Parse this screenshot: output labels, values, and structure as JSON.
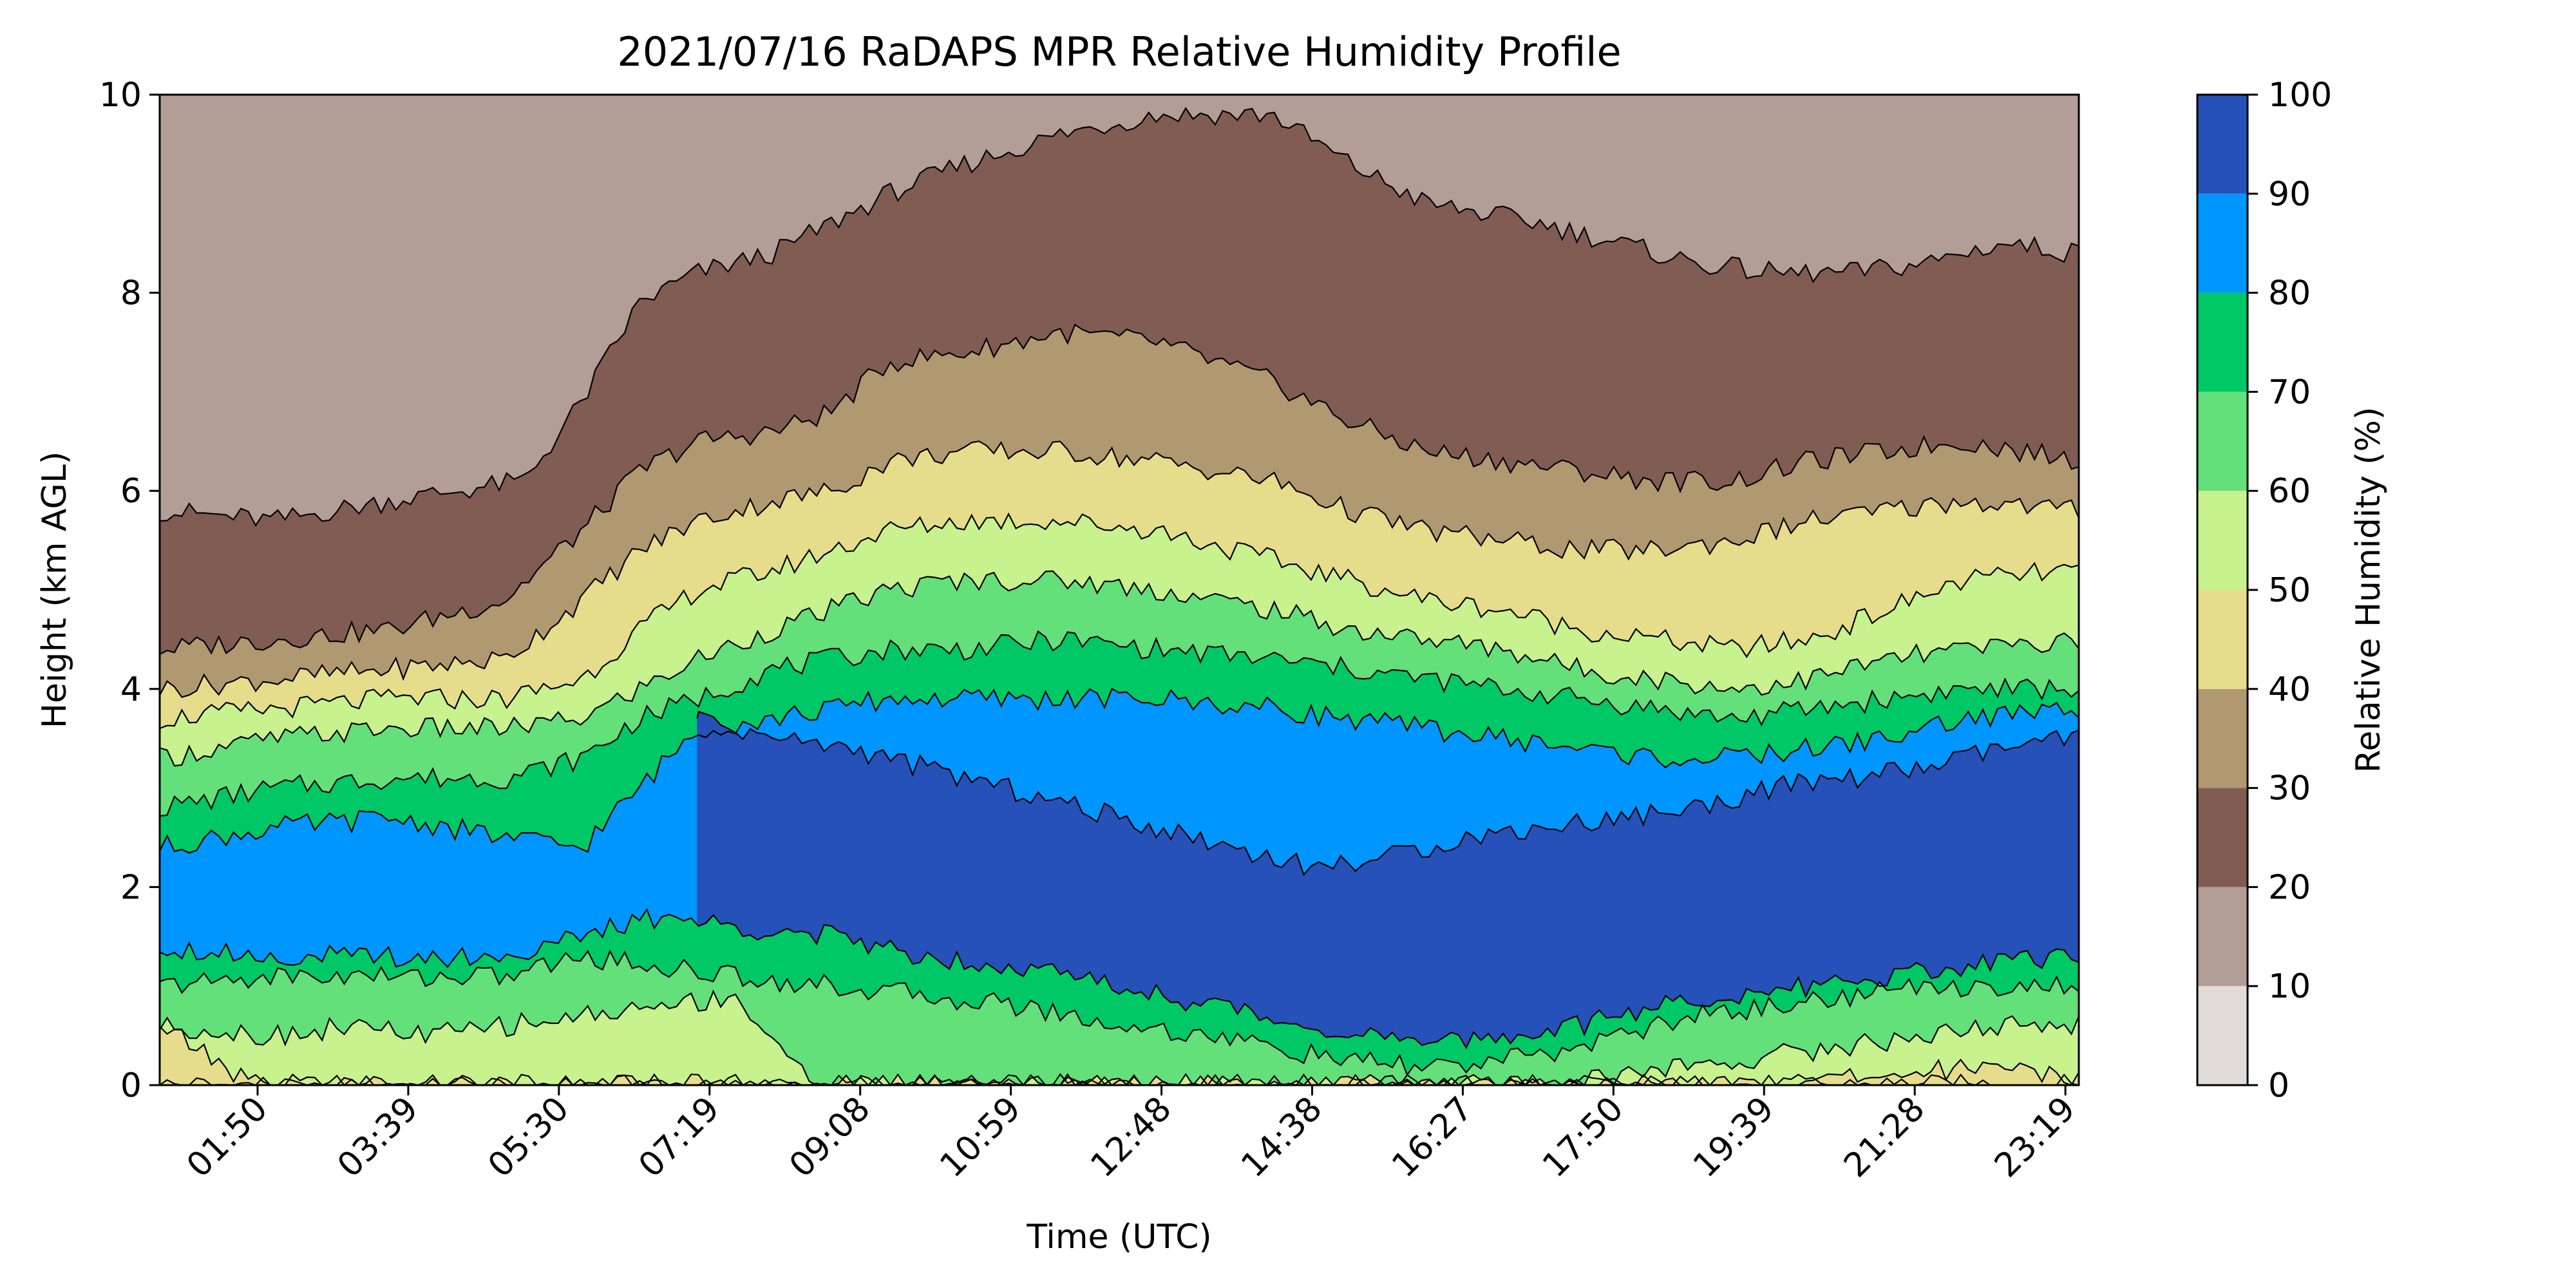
{
  "chart_data": {
    "type": "heatmap",
    "subtype": "filled-contour",
    "title": "2021/07/16 RaDAPS MPR Relative Humidity Profile",
    "xlabel": "Time (UTC)",
    "ylabel": "Height (km AGL)",
    "x_tick_labels": [
      "01:50",
      "03:39",
      "05:30",
      "07:19",
      "09:08",
      "10:59",
      "12:48",
      "14:38",
      "16:27",
      "17:50",
      "19:39",
      "21:28",
      "23:19"
    ],
    "x_tick_rotation_deg": 45,
    "ylim": [
      0,
      10
    ],
    "y_ticks": [
      0,
      2,
      4,
      6,
      8,
      10
    ],
    "colorbar": {
      "label": "Relative Humidity (%)",
      "ticks": [
        0,
        10,
        20,
        30,
        40,
        50,
        60,
        70,
        80,
        90,
        100
      ],
      "levels": [
        0,
        10,
        20,
        30,
        40,
        50,
        60,
        70,
        80,
        90,
        100
      ],
      "colors": [
        "#e2dcd8",
        "#b39d97",
        "#805c53",
        "#b09870",
        "#e5dd8b",
        "#c8f28e",
        "#64e07a",
        "#00c866",
        "#0096ff",
        "#2551b8"
      ]
    },
    "grid": false,
    "contour_boundaries_km": [
      {
        "level": 10,
        "x": [
          0,
          0.5,
          1
        ],
        "y": [
          0,
          0,
          0
        ]
      },
      {
        "level": 20,
        "x": [
          0.0,
          0.06,
          0.12,
          0.19,
          0.22,
          0.25,
          0.28,
          0.32,
          0.35,
          0.38,
          0.42,
          0.47,
          0.52,
          0.58,
          0.62,
          0.66,
          0.72,
          0.76,
          0.8,
          0.84,
          0.88,
          0.92,
          0.96,
          1.0
        ],
        "y": [
          5.8,
          5.7,
          5.9,
          6.1,
          6.9,
          7.9,
          8.2,
          8.4,
          8.7,
          9.0,
          9.3,
          9.6,
          9.8,
          9.8,
          9.3,
          8.9,
          8.7,
          8.5,
          8.3,
          8.2,
          8.2,
          8.3,
          8.5,
          8.4
        ]
      },
      {
        "level": 30,
        "x": [
          0.0,
          0.06,
          0.12,
          0.18,
          0.22,
          0.25,
          0.28,
          0.32,
          0.35,
          0.38,
          0.42,
          0.47,
          0.52,
          0.58,
          0.62,
          0.66,
          0.7,
          0.74,
          0.78,
          0.82,
          0.86,
          0.9,
          0.94,
          1.0
        ],
        "y": [
          4.4,
          4.5,
          4.6,
          4.9,
          5.6,
          6.2,
          6.5,
          6.6,
          6.8,
          7.3,
          7.4,
          7.6,
          7.5,
          7.1,
          6.7,
          6.4,
          6.3,
          6.2,
          6.1,
          6.1,
          6.3,
          6.4,
          6.5,
          6.3
        ]
      },
      {
        "level": 40,
        "x": [
          0.0,
          0.06,
          0.12,
          0.18,
          0.22,
          0.25,
          0.28,
          0.32,
          0.35,
          0.38,
          0.42,
          0.47,
          0.52,
          0.58,
          0.62,
          0.66,
          0.7,
          0.74,
          0.78,
          0.82,
          0.86,
          0.9,
          0.94,
          1.0
        ],
        "y": [
          4.0,
          4.1,
          4.2,
          4.3,
          4.9,
          5.4,
          5.7,
          5.9,
          6.0,
          6.3,
          6.4,
          6.4,
          6.3,
          6.1,
          5.8,
          5.6,
          5.5,
          5.4,
          5.4,
          5.5,
          5.7,
          5.8,
          5.9,
          5.8
        ]
      },
      {
        "level": 50,
        "x": [
          0.0,
          0.06,
          0.12,
          0.18,
          0.22,
          0.25,
          0.28,
          0.32,
          0.35,
          0.38,
          0.42,
          0.47,
          0.52,
          0.58,
          0.62,
          0.66,
          0.7,
          0.74,
          0.78,
          0.82,
          0.86,
          0.9,
          0.94,
          1.0
        ],
        "y": [
          3.7,
          3.8,
          3.9,
          3.9,
          4.1,
          4.6,
          5.0,
          5.2,
          5.4,
          5.6,
          5.7,
          5.7,
          5.6,
          5.3,
          5.1,
          4.9,
          4.8,
          4.6,
          4.5,
          4.4,
          4.5,
          4.8,
          5.1,
          5.2
        ]
      },
      {
        "level": 60,
        "x": [
          0.0,
          0.06,
          0.12,
          0.18,
          0.22,
          0.25,
          0.28,
          0.32,
          0.35,
          0.38,
          0.42,
          0.47,
          0.52,
          0.58,
          0.62,
          0.66,
          0.7,
          0.74,
          0.78,
          0.82,
          0.86,
          0.9,
          0.94,
          1.0
        ],
        "y": [
          3.3,
          3.5,
          3.6,
          3.6,
          3.7,
          4.0,
          4.3,
          4.6,
          4.8,
          5.0,
          5.1,
          5.1,
          5.0,
          4.8,
          4.6,
          4.5,
          4.4,
          4.2,
          4.1,
          4.0,
          4.1,
          4.3,
          4.4,
          4.5
        ]
      },
      {
        "level": 70,
        "x": [
          0.0,
          0.06,
          0.12,
          0.18,
          0.22,
          0.25,
          0.28,
          0.32,
          0.35,
          0.38,
          0.42,
          0.47,
          0.52,
          0.58,
          0.62,
          0.66,
          0.7,
          0.74,
          0.78,
          0.82,
          0.86,
          0.9,
          0.94,
          1.0
        ],
        "y": [
          2.8,
          3.0,
          3.1,
          3.1,
          3.3,
          3.7,
          3.9,
          4.2,
          4.3,
          4.4,
          4.4,
          4.5,
          4.4,
          4.3,
          4.2,
          4.1,
          4.0,
          3.9,
          3.8,
          3.7,
          3.8,
          3.9,
          4.0,
          4.0
        ]
      },
      {
        "level": 80,
        "x": [
          0.0,
          0.06,
          0.12,
          0.18,
          0.22,
          0.25,
          0.28,
          0.32,
          0.35,
          0.38,
          0.42,
          0.47,
          0.52,
          0.58,
          0.62,
          0.66,
          0.7,
          0.74,
          0.78,
          0.82,
          0.86,
          0.9,
          0.94,
          1.0
        ],
        "y": [
          2.4,
          2.6,
          2.7,
          2.5,
          2.4,
          3.0,
          3.6,
          3.7,
          3.8,
          3.9,
          3.9,
          3.9,
          3.9,
          3.8,
          3.7,
          3.6,
          3.5,
          3.4,
          3.3,
          3.3,
          3.4,
          3.5,
          3.7,
          3.8
        ]
      },
      {
        "level": 90,
        "x": [
          0.28,
          0.3,
          0.32,
          0.36,
          0.4,
          0.44,
          0.48,
          0.52,
          0.56,
          0.6,
          0.64,
          0.68,
          0.72,
          0.76,
          0.8,
          0.84,
          0.88,
          0.92,
          0.96,
          1.0
        ],
        "y": [
          3.7,
          3.6,
          3.5,
          3.4,
          3.2,
          3.0,
          2.8,
          2.6,
          2.4,
          2.2,
          2.3,
          2.5,
          2.6,
          2.7,
          2.8,
          3.0,
          3.1,
          3.2,
          3.4,
          3.5
        ]
      },
      {
        "level": 80,
        "x": [
          0.0,
          0.06,
          0.12,
          0.18,
          0.22,
          0.26,
          0.3,
          0.35,
          0.4,
          0.45,
          0.5,
          0.55,
          0.6,
          0.63,
          0.66,
          0.7,
          0.74,
          0.78,
          0.82,
          0.86,
          0.9,
          0.94,
          1.0
        ],
        "y": [
          1.4,
          1.3,
          1.3,
          1.3,
          1.5,
          1.7,
          1.6,
          1.5,
          1.3,
          1.2,
          1.0,
          0.8,
          0.6,
          0.5,
          0.4,
          0.5,
          0.6,
          0.8,
          0.9,
          1.0,
          1.1,
          1.2,
          1.3
        ]
      },
      {
        "level": 70,
        "x": [
          0.0,
          0.06,
          0.12,
          0.18,
          0.22,
          0.26,
          0.3,
          0.35,
          0.4,
          0.45,
          0.5,
          0.55,
          0.6,
          0.64,
          0.68,
          0.72,
          0.76,
          0.8,
          0.84,
          0.88,
          0.92,
          0.96,
          1.0
        ],
        "y": [
          1.0,
          1.1,
          1.1,
          1.1,
          1.3,
          1.2,
          1.1,
          1.0,
          0.9,
          0.8,
          0.6,
          0.5,
          0.3,
          0.2,
          0.2,
          0.3,
          0.5,
          0.7,
          0.8,
          0.9,
          1.0,
          1.0,
          1.0
        ]
      },
      {
        "level": 60,
        "x": [
          0.0,
          0.06,
          0.1,
          0.14,
          0.18,
          0.22,
          0.26,
          0.3,
          0.34,
          0.4,
          0.6,
          0.66,
          0.72,
          0.76,
          0.8,
          0.84,
          0.88,
          0.92,
          0.96,
          1.0
        ],
        "y": [
          0.6,
          0.5,
          0.6,
          0.5,
          0.6,
          0.7,
          0.8,
          0.9,
          0.0,
          0.0,
          0.0,
          0.0,
          0.0,
          0.1,
          0.2,
          0.3,
          0.4,
          0.5,
          0.6,
          0.6
        ]
      },
      {
        "level": 50,
        "x": [
          0.0,
          0.05,
          0.1,
          0.3,
          0.7,
          0.85,
          0.9,
          0.95,
          1.0
        ],
        "y": [
          0.6,
          0.0,
          0.0,
          0.0,
          0.0,
          0.0,
          0.1,
          0.2,
          0.1
        ]
      }
    ]
  }
}
